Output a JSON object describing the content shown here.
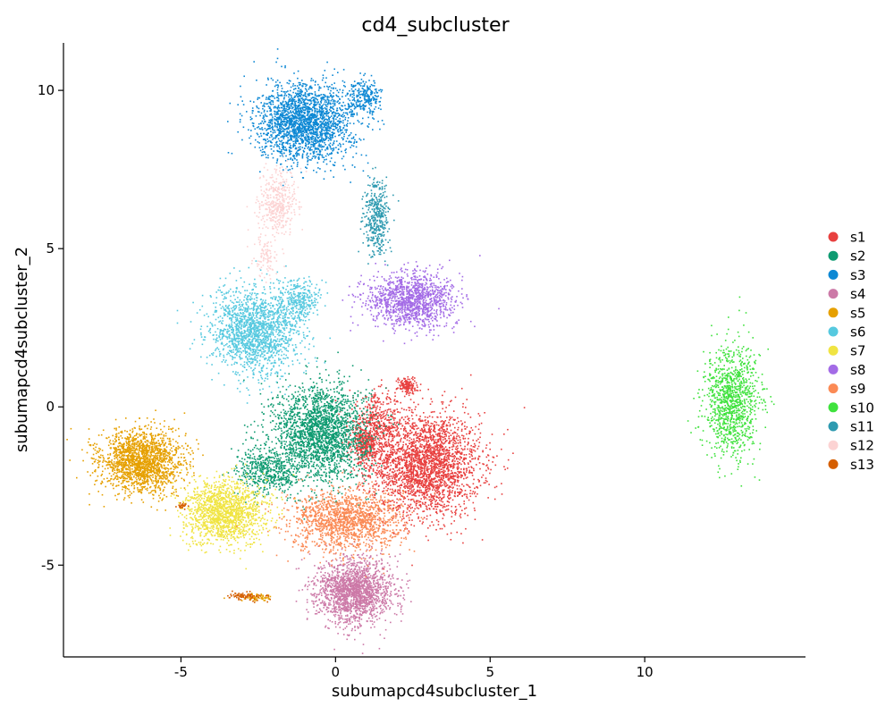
{
  "chart_data": {
    "type": "scatter",
    "title": "cd4_subcluster",
    "xlabel": "subumapcd4subcluster_1",
    "ylabel": "subumapcd4subcluster_2",
    "xlim": [
      -8.8,
      15.2
    ],
    "ylim": [
      -7.9,
      11.5
    ],
    "xticks": [
      -5,
      0,
      5,
      10
    ],
    "yticks": [
      -5,
      0,
      5,
      10
    ],
    "grid": false,
    "legend_position": "right",
    "series": [
      {
        "name": "s1",
        "color": "#E8403F",
        "clusters": [
          {
            "cx": 2.9,
            "cy": -1.8,
            "rx": 1.6,
            "ry": 1.5,
            "n": 2600
          },
          {
            "cx": 1.3,
            "cy": -0.6,
            "rx": 0.8,
            "ry": 0.9,
            "n": 500
          },
          {
            "cx": 0.9,
            "cy": -1.2,
            "rx": 0.35,
            "ry": 0.5,
            "n": 300
          },
          {
            "cx": 2.3,
            "cy": 0.7,
            "rx": 0.3,
            "ry": 0.25,
            "n": 140
          }
        ]
      },
      {
        "name": "s2",
        "color": "#0E9B71",
        "clusters": [
          {
            "cx": -0.5,
            "cy": -0.8,
            "rx": 1.4,
            "ry": 1.4,
            "n": 2200
          },
          {
            "cx": -2.2,
            "cy": -2.0,
            "rx": 0.9,
            "ry": 0.7,
            "n": 500
          }
        ]
      },
      {
        "name": "s3",
        "color": "#0D88D4",
        "clusters": [
          {
            "cx": -1.0,
            "cy": 9.0,
            "rx": 1.4,
            "ry": 1.1,
            "n": 2200
          },
          {
            "cx": 0.9,
            "cy": 9.8,
            "rx": 0.5,
            "ry": 0.5,
            "n": 250
          }
        ]
      },
      {
        "name": "s4",
        "color": "#CC79A7",
        "clusters": [
          {
            "cx": 0.6,
            "cy": -5.8,
            "rx": 1.1,
            "ry": 0.9,
            "n": 1800
          }
        ]
      },
      {
        "name": "s5",
        "color": "#E6A000",
        "clusters": [
          {
            "cx": -6.3,
            "cy": -1.7,
            "rx": 1.2,
            "ry": 0.9,
            "n": 1800
          },
          {
            "cx": -2.6,
            "cy": -6.0,
            "rx": 0.5,
            "ry": 0.12,
            "n": 60
          }
        ]
      },
      {
        "name": "s6",
        "color": "#56C9DF",
        "clusters": [
          {
            "cx": -2.6,
            "cy": 2.4,
            "rx": 1.3,
            "ry": 1.2,
            "n": 1700
          },
          {
            "cx": -1.2,
            "cy": 3.4,
            "rx": 0.6,
            "ry": 0.6,
            "n": 300
          }
        ]
      },
      {
        "name": "s7",
        "color": "#F0E442",
        "clusters": [
          {
            "cx": -3.6,
            "cy": -3.3,
            "rx": 1.2,
            "ry": 0.9,
            "n": 1500
          }
        ]
      },
      {
        "name": "s8",
        "color": "#A36BE6",
        "clusters": [
          {
            "cx": 2.4,
            "cy": 3.4,
            "rx": 1.3,
            "ry": 0.8,
            "n": 1300
          }
        ]
      },
      {
        "name": "s9",
        "color": "#FB8A55",
        "clusters": [
          {
            "cx": 0.3,
            "cy": -3.6,
            "rx": 1.6,
            "ry": 0.9,
            "n": 1500
          }
        ]
      },
      {
        "name": "s10",
        "color": "#3FE23D",
        "clusters": [
          {
            "cx": 12.8,
            "cy": 0.2,
            "rx": 0.8,
            "ry": 1.6,
            "n": 1100
          }
        ]
      },
      {
        "name": "s11",
        "color": "#2E9AB0",
        "clusters": [
          {
            "cx": 1.3,
            "cy": 6.0,
            "rx": 0.35,
            "ry": 1.1,
            "n": 400
          }
        ]
      },
      {
        "name": "s12",
        "color": "#FCD3D3",
        "clusters": [
          {
            "cx": -1.9,
            "cy": 6.5,
            "rx": 0.6,
            "ry": 0.9,
            "n": 400
          },
          {
            "cx": -2.3,
            "cy": 4.8,
            "rx": 0.4,
            "ry": 0.6,
            "n": 100
          }
        ]
      },
      {
        "name": "s13",
        "color": "#D55E00",
        "clusters": [
          {
            "cx": -2.9,
            "cy": -5.95,
            "rx": 0.55,
            "ry": 0.12,
            "n": 80
          },
          {
            "cx": -5.0,
            "cy": -3.1,
            "rx": 0.2,
            "ry": 0.08,
            "n": 25
          }
        ]
      }
    ]
  }
}
